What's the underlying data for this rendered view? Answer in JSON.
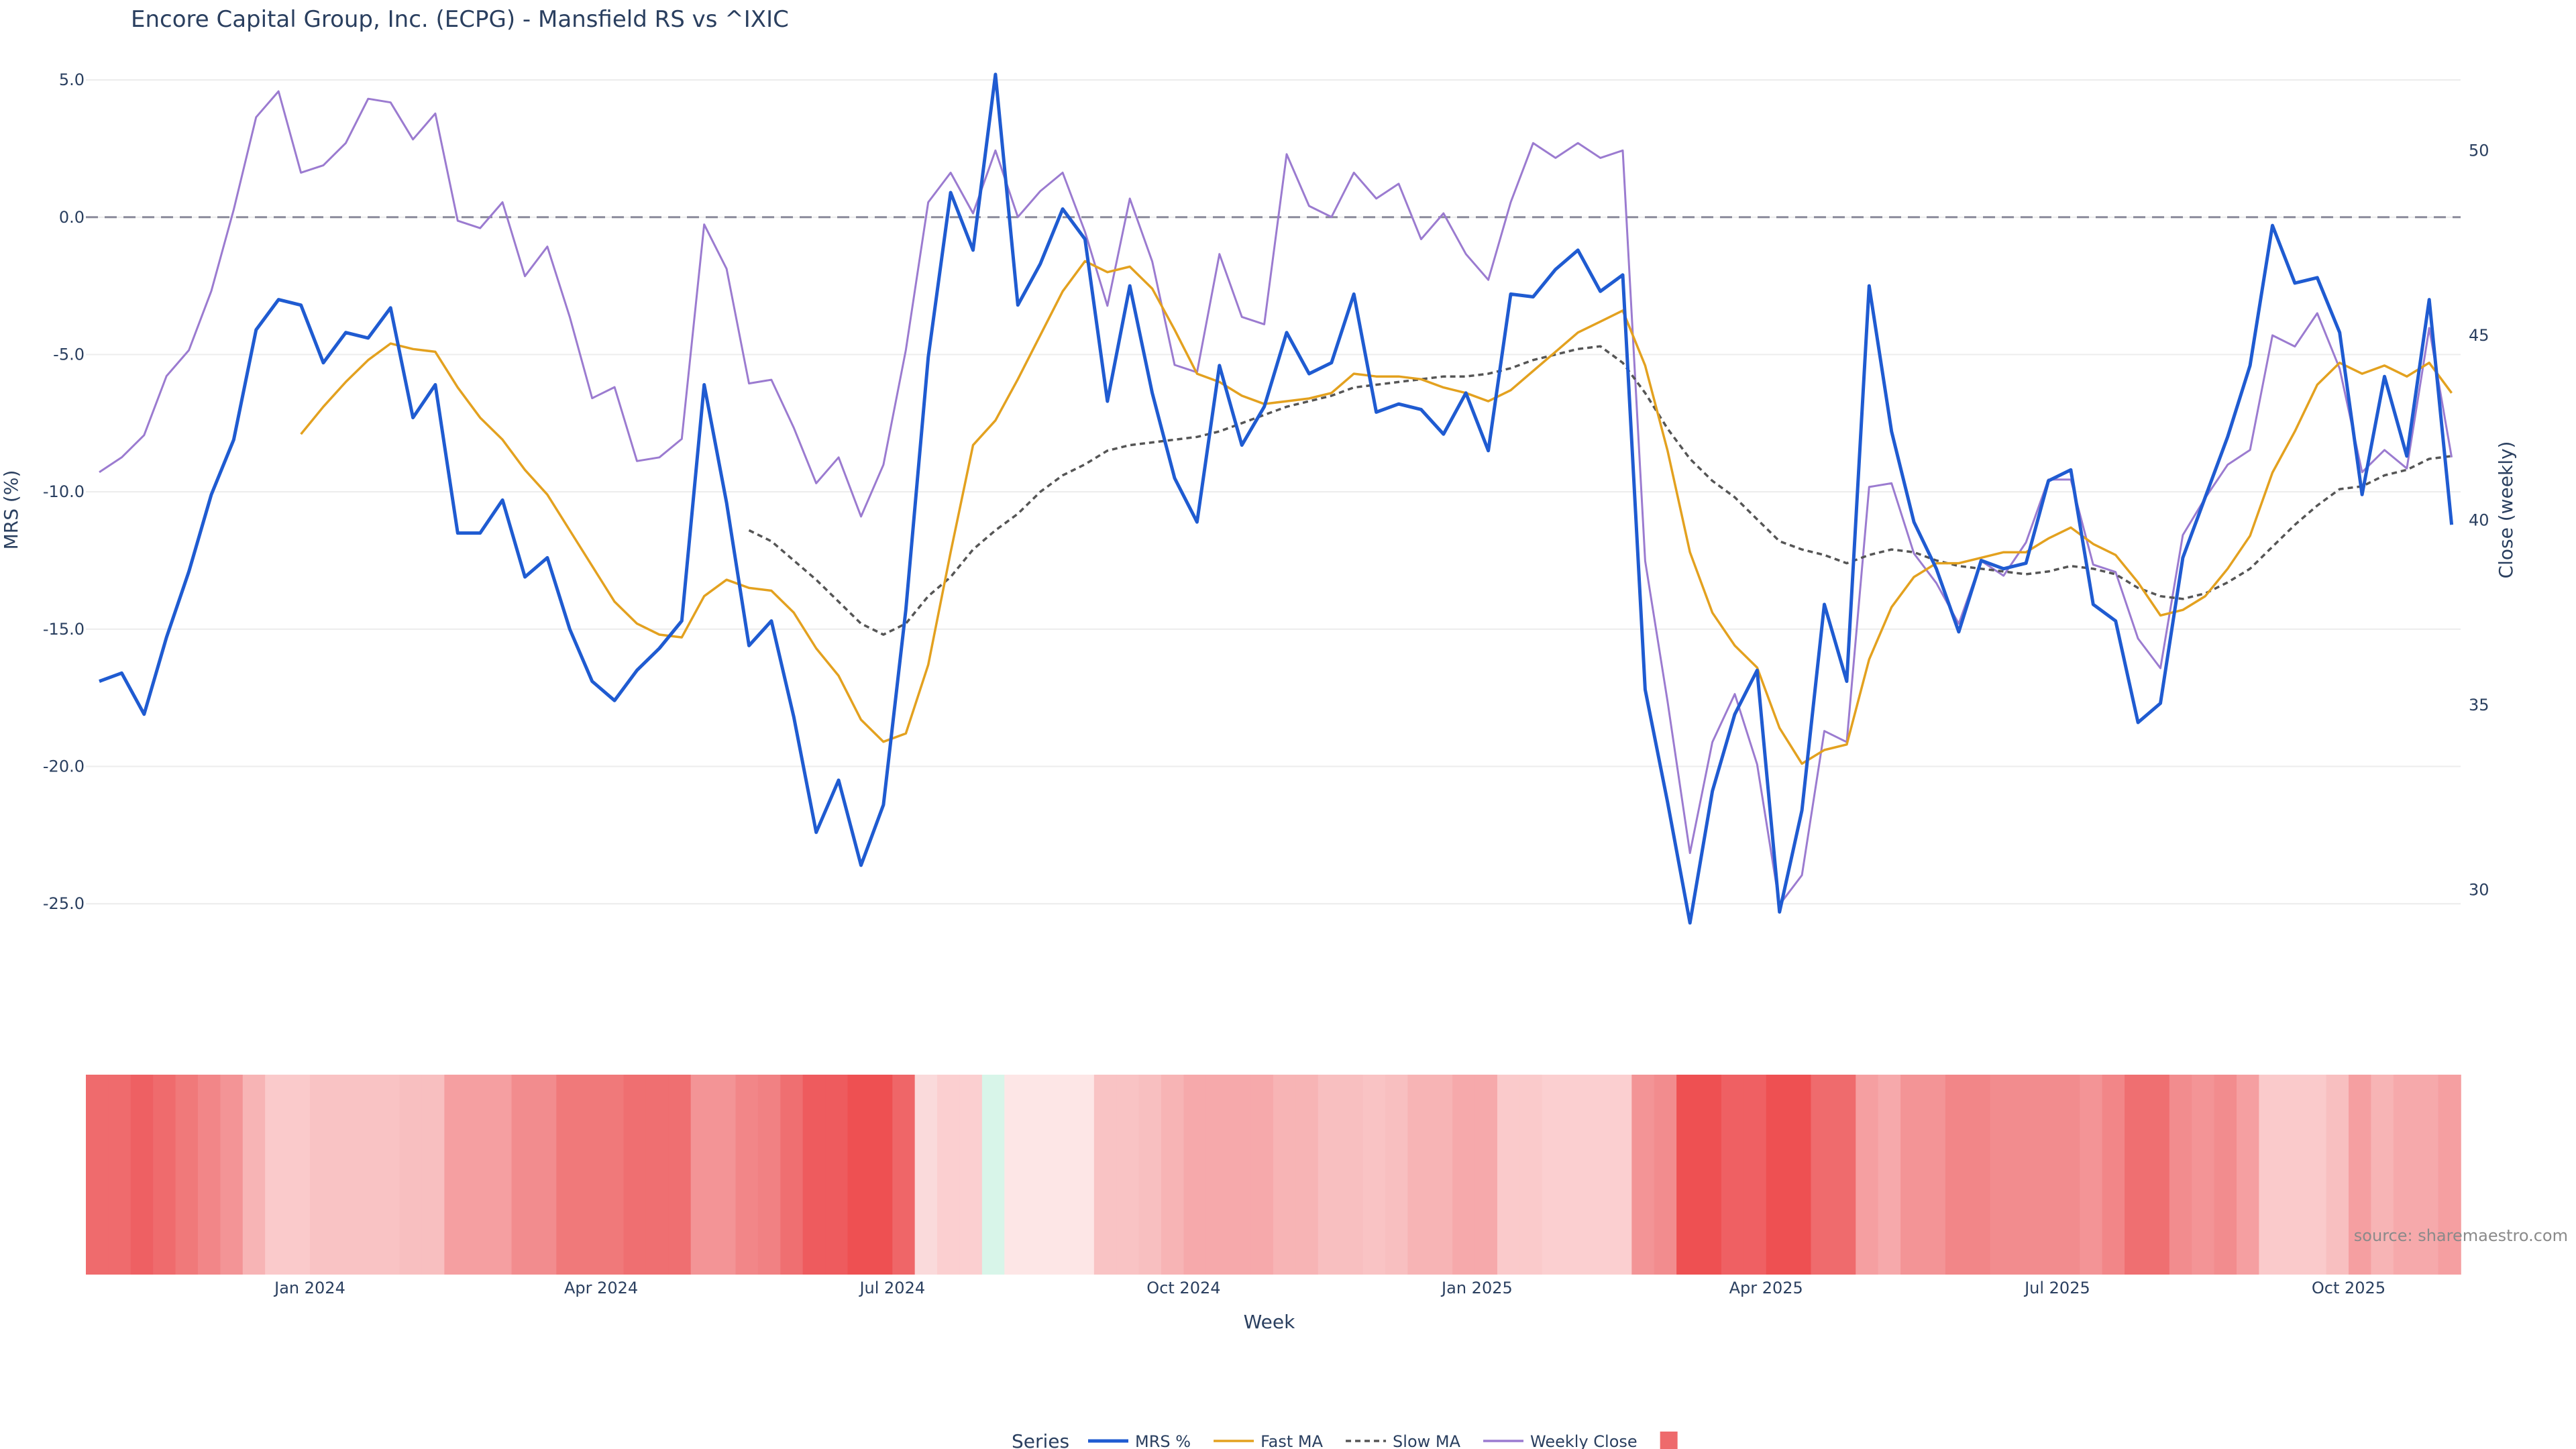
{
  "chart_data": {
    "type": "line",
    "title": "Encore Capital Group, Inc. (ECPG) - Mansfield RS vs ^IXIC",
    "xlabel": "Week",
    "ylabel": "MRS (%)",
    "y2label": "Close (weekly)",
    "x_ticks": [
      "Jan 2024",
      "Apr 2024",
      "Jul 2024",
      "Oct 2024",
      "Jan 2025",
      "Apr 2025",
      "Jul 2025",
      "Oct 2025"
    ],
    "y_ticks": [
      "5.0",
      "0.0",
      "-5.0",
      "-10.0",
      "-15.0",
      "-20.0",
      "-25.0"
    ],
    "y2_ticks": [
      "50",
      "45",
      "40",
      "35",
      "30"
    ],
    "ylim": [
      -28.0,
      6.2
    ],
    "y2lim": [
      27.4,
      52.8
    ],
    "zero_line": true,
    "grid": true,
    "legend_title": "Series",
    "legend_position": "bottom",
    "source": "source: sharemaestro.com",
    "series": [
      {
        "name": "MRS %",
        "color": "#1f5bd1",
        "style": "solid",
        "axis": "left",
        "values": [
          -16.9,
          -16.6,
          -18.1,
          -15.3,
          -12.9,
          -10.1,
          -8.1,
          -4.1,
          -3.0,
          -3.2,
          -5.3,
          -4.2,
          -4.4,
          -3.3,
          -7.3,
          -6.1,
          -11.5,
          -11.5,
          -10.3,
          -13.1,
          -12.4,
          -15.0,
          -16.9,
          -17.6,
          -16.5,
          -15.7,
          -14.7,
          -6.1,
          -10.4,
          -15.6,
          -14.7,
          -18.2,
          -22.4,
          -20.5,
          -23.6,
          -21.4,
          -14.3,
          -5.1,
          0.9,
          -1.2,
          5.2,
          -3.2,
          -1.7,
          0.3,
          -0.8,
          -6.7,
          -2.5,
          -6.4,
          -9.5,
          -11.1,
          -5.4,
          -8.3,
          -6.9,
          -4.2,
          -5.7,
          -5.3,
          -2.8,
          -7.1,
          -6.8,
          -7.0,
          -7.9,
          -6.4,
          -8.5,
          -2.8,
          -2.9,
          -1.9,
          -1.2,
          -2.7,
          -2.1,
          -17.2,
          -21.3,
          -25.7,
          -20.9,
          -18.1,
          -16.5,
          -25.3,
          -21.6,
          -14.1,
          -16.9,
          -2.5,
          -7.8,
          -11.1,
          -12.8,
          -15.1,
          -12.5,
          -12.8,
          -12.6,
          -9.6,
          -9.2,
          -14.1,
          -14.7,
          -18.4,
          -17.7,
          -12.4,
          -10.2,
          -8.0,
          -5.4,
          -0.3,
          -2.4,
          -2.2,
          -4.2,
          -10.1,
          -5.8,
          -8.7,
          -3.0,
          -11.2
        ]
      },
      {
        "name": "Fast MA",
        "color": "#e3a11f",
        "style": "solid",
        "axis": "left",
        "values": [
          null,
          null,
          null,
          null,
          null,
          null,
          null,
          null,
          null,
          -7.9,
          -6.9,
          -6.0,
          -5.2,
          -4.6,
          -4.8,
          -4.9,
          -6.2,
          -7.3,
          -8.1,
          -9.2,
          -10.1,
          -11.4,
          -12.7,
          -14.0,
          -14.8,
          -15.2,
          -15.3,
          -13.8,
          -13.2,
          -13.5,
          -13.6,
          -14.4,
          -15.7,
          -16.7,
          -18.3,
          -19.1,
          -18.8,
          -16.3,
          -12.2,
          -8.3,
          -7.4,
          -5.9,
          -4.3,
          -2.7,
          -1.6,
          -2.0,
          -1.8,
          -2.6,
          -4.1,
          -5.7,
          -6.0,
          -6.5,
          -6.8,
          -6.7,
          -6.6,
          -6.4,
          -5.7,
          -5.8,
          -5.8,
          -5.9,
          -6.2,
          -6.4,
          -6.7,
          -6.3,
          -5.6,
          -4.9,
          -4.2,
          -3.8,
          -3.4,
          -5.4,
          -8.5,
          -12.2,
          -14.4,
          -15.6,
          -16.4,
          -18.6,
          -19.9,
          -19.4,
          -19.2,
          -16.1,
          -14.2,
          -13.1,
          -12.6,
          -12.6,
          -12.4,
          -12.2,
          -12.2,
          -11.7,
          -11.3,
          -11.9,
          -12.3,
          -13.3,
          -14.5,
          -14.3,
          -13.8,
          -12.8,
          -11.6,
          -9.3,
          -7.8,
          -6.1,
          -5.3,
          -5.7,
          -5.4,
          -5.8,
          -5.3,
          -6.4
        ]
      },
      {
        "name": "Slow MA",
        "color": "#555555",
        "style": "dash",
        "axis": "left",
        "values": [
          null,
          null,
          null,
          null,
          null,
          null,
          null,
          null,
          null,
          null,
          null,
          null,
          null,
          null,
          null,
          null,
          null,
          null,
          null,
          null,
          null,
          null,
          null,
          null,
          null,
          null,
          null,
          null,
          null,
          -11.4,
          -11.8,
          -12.5,
          -13.2,
          -14.0,
          -14.8,
          -15.2,
          -14.8,
          -13.8,
          -13.1,
          -12.1,
          -11.4,
          -10.8,
          -10.0,
          -9.4,
          -9.0,
          -8.5,
          -8.3,
          -8.2,
          -8.1,
          -8.0,
          -7.8,
          -7.5,
          -7.2,
          -6.9,
          -6.7,
          -6.5,
          -6.2,
          -6.1,
          -6.0,
          -5.9,
          -5.8,
          -5.8,
          -5.7,
          -5.5,
          -5.2,
          -5.0,
          -4.8,
          -4.7,
          -5.3,
          -6.4,
          -7.7,
          -8.8,
          -9.6,
          -10.2,
          -11.0,
          -11.8,
          -12.1,
          -12.3,
          -12.6,
          -12.3,
          -12.1,
          -12.2,
          -12.5,
          -12.7,
          -12.8,
          -12.9,
          -13.0,
          -12.9,
          -12.7,
          -12.8,
          -13.0,
          -13.5,
          -13.8,
          -13.9,
          -13.7,
          -13.3,
          -12.8,
          -12.0,
          -11.2,
          -10.5,
          -9.9,
          -9.8,
          -9.4,
          -9.2,
          -8.8,
          -8.7
        ]
      },
      {
        "name": "Weekly Close",
        "color": "#9b7bd0",
        "style": "solid",
        "axis": "right",
        "values": [
          41.3,
          41.7,
          42.3,
          43.9,
          44.6,
          46.2,
          48.4,
          50.9,
          51.6,
          49.4,
          49.6,
          50.2,
          51.4,
          51.3,
          50.3,
          51.0,
          48.1,
          47.9,
          48.6,
          46.6,
          47.4,
          45.5,
          43.3,
          43.6,
          41.6,
          41.7,
          42.2,
          48.0,
          46.8,
          43.7,
          43.8,
          42.5,
          41.0,
          41.7,
          40.1,
          41.5,
          44.6,
          48.6,
          49.4,
          48.3,
          50.0,
          48.2,
          48.9,
          49.4,
          47.8,
          45.8,
          48.7,
          47.0,
          44.2,
          44.0,
          47.2,
          45.5,
          45.3,
          49.9,
          48.5,
          48.2,
          49.4,
          48.7,
          49.1,
          47.6,
          48.3,
          47.2,
          46.5,
          48.6,
          50.2,
          49.8,
          50.2,
          49.8,
          50.0,
          38.9,
          35.1,
          31.0,
          34.0,
          35.3,
          33.4,
          29.6,
          30.4,
          34.3,
          34.0,
          40.9,
          41.0,
          39.1,
          38.3,
          37.2,
          38.9,
          38.5,
          39.4,
          41.1,
          41.1,
          38.8,
          38.6,
          36.8,
          36.0,
          39.6,
          40.6,
          41.5,
          41.9,
          45.0,
          44.7,
          45.6,
          44.1,
          41.3,
          41.9,
          41.4,
          45.2,
          41.7
        ]
      }
    ],
    "heatmap_strip": {
      "legend_swatch": "#ee6a6c",
      "colors": [
        "#ef6b6d",
        "#ef6b6d",
        "#ee6063",
        "#ef6b6d",
        "#f0797a",
        "#f28688",
        "#f39496",
        "#f7b4b5",
        "#facacb",
        "#facacb",
        "#f9c3c4",
        "#f9c3c4",
        "#f9c3c4",
        "#f9c3c4",
        "#f8bfc0",
        "#f8bfc0",
        "#f59fa1",
        "#f59fa1",
        "#f59fa1",
        "#f28c8e",
        "#f28c8e",
        "#f0797a",
        "#f0797a",
        "#f0797a",
        "#ef6f71",
        "#ef6f71",
        "#ef6f71",
        "#f39496",
        "#f39496",
        "#f28688",
        "#f18183",
        "#ef6f71",
        "#ee5b5e",
        "#ee5b5e",
        "#ee5052",
        "#ee5052",
        "#ef6668",
        "#fadadb",
        "#fbcfd0",
        "#fbcfd0",
        "#d8f5e9",
        "#fde6e6",
        "#fde6e6",
        "#fde6e6",
        "#fde6e6",
        "#f9c3c4",
        "#f9c3c4",
        "#f8bfc0",
        "#f7b4b5",
        "#f6a9ab",
        "#f6a9ab",
        "#f6a9ab",
        "#f6a9ab",
        "#f7b4b5",
        "#f7b4b5",
        "#f8bfc0",
        "#f8bfc0",
        "#f9c3c4",
        "#f8bfc0",
        "#f7b4b5",
        "#f7b4b5",
        "#f6a9ab",
        "#f6a9ab",
        "#facacb",
        "#facacb",
        "#fbcfd0",
        "#fbcfd0",
        "#fbcfd0",
        "#fbcfd0",
        "#f39496",
        "#f28c8e",
        "#ee5052",
        "#ee5052",
        "#ef6063",
        "#ef6063",
        "#ee5052",
        "#ee5052",
        "#ef6b6d",
        "#ef6b6d",
        "#f59fa1",
        "#f6a9ab",
        "#f39496",
        "#f39496",
        "#f28688",
        "#f28688",
        "#f28c8e",
        "#f28c8e",
        "#f28c8e",
        "#f28c8e",
        "#f39496",
        "#f28688",
        "#ef6f71",
        "#ef6f71",
        "#f28c8e",
        "#f39496",
        "#f28c8e",
        "#f59fa1",
        "#facacb",
        "#facacb",
        "#facacb",
        "#f8bfc0",
        "#f59fa1",
        "#f7b4b5",
        "#f6a9ab",
        "#f6a9ab",
        "#f59fa1"
      ]
    }
  }
}
